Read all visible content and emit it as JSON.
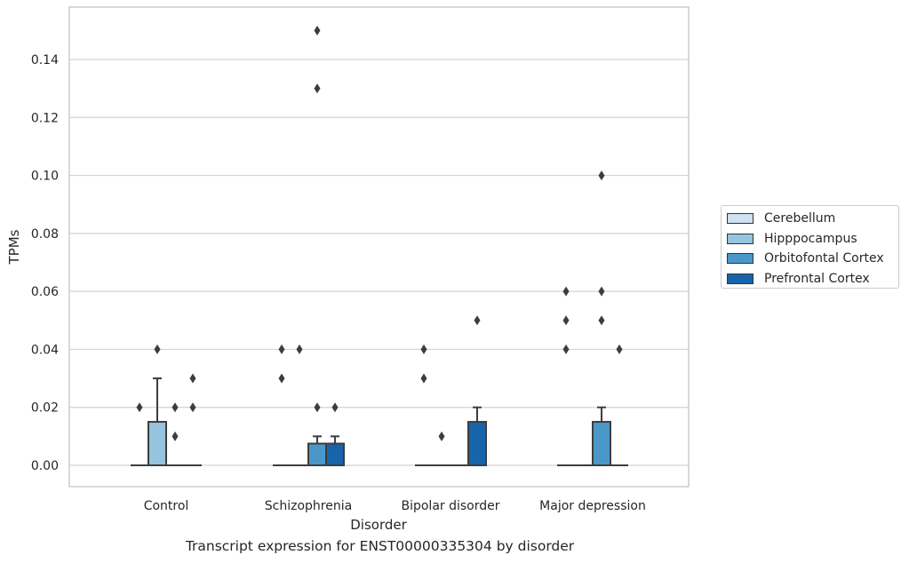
{
  "chart_data": {
    "type": "boxplot",
    "xlabel": "Disorder",
    "ylabel": "TPMs",
    "ylim": [
      -0.0075,
      0.157
    ],
    "yticks": [
      0.0,
      0.02,
      0.04,
      0.06,
      0.08,
      0.1,
      0.12,
      0.14
    ],
    "ytick_labels": [
      "0.00",
      "0.02",
      "0.04",
      "0.06",
      "0.08",
      "0.10",
      "0.12",
      "0.14"
    ],
    "grid": "horizontal",
    "legend_position": "right",
    "categories": [
      "Control",
      "Schizophrenia",
      "Bipolar disorder",
      "Major depression"
    ],
    "series": [
      {
        "name": "Cerebellum",
        "color": "#d0e1f2",
        "boxes": [
          {
            "q1": 0,
            "median": 0,
            "q3": 0,
            "whisker_low": 0,
            "whisker_high": 0,
            "outliers": [
              0.02
            ]
          },
          {
            "q1": 0,
            "median": 0,
            "q3": 0,
            "whisker_low": 0,
            "whisker_high": 0,
            "outliers": [
              0.03,
              0.04
            ]
          },
          {
            "q1": 0,
            "median": 0,
            "q3": 0,
            "whisker_low": 0,
            "whisker_high": 0,
            "outliers": [
              0.03,
              0.04
            ]
          },
          {
            "q1": 0,
            "median": 0,
            "q3": 0,
            "whisker_low": 0,
            "whisker_high": 0,
            "outliers": [
              0.04,
              0.05,
              0.06
            ]
          }
        ]
      },
      {
        "name": "Hipppocampus",
        "color": "#94c4df",
        "boxes": [
          {
            "q1": 0,
            "median": 0,
            "q3": 0.015,
            "whisker_low": 0,
            "whisker_high": 0.03,
            "outliers": [
              0.04
            ]
          },
          {
            "q1": 0,
            "median": 0,
            "q3": 0,
            "whisker_low": 0,
            "whisker_high": 0,
            "outliers": [
              0.04
            ]
          },
          {
            "q1": 0,
            "median": 0,
            "q3": 0,
            "whisker_low": 0,
            "whisker_high": 0,
            "outliers": [
              0.01
            ]
          },
          {
            "q1": 0,
            "median": 0,
            "q3": 0,
            "whisker_low": 0,
            "whisker_high": 0,
            "outliers": []
          }
        ]
      },
      {
        "name": "Orbitofontal Cortex",
        "color": "#4a98c9",
        "boxes": [
          {
            "q1": 0,
            "median": 0,
            "q3": 0,
            "whisker_low": 0,
            "whisker_high": 0,
            "outliers": [
              0.01,
              0.02
            ]
          },
          {
            "q1": 0,
            "median": 0,
            "q3": 0.0075,
            "whisker_low": 0,
            "whisker_high": 0.01,
            "outliers": [
              0.02,
              0.13,
              0.15
            ]
          },
          {
            "q1": 0,
            "median": 0,
            "q3": 0,
            "whisker_low": 0,
            "whisker_high": 0,
            "outliers": []
          },
          {
            "q1": 0,
            "median": 0,
            "q3": 0.015,
            "whisker_low": 0,
            "whisker_high": 0.02,
            "outliers": [
              0.05,
              0.06,
              0.1
            ]
          }
        ]
      },
      {
        "name": "Prefrontal Cortex",
        "color": "#1764ab",
        "boxes": [
          {
            "q1": 0,
            "median": 0,
            "q3": 0,
            "whisker_low": 0,
            "whisker_high": 0,
            "outliers": [
              0.02,
              0.03
            ]
          },
          {
            "q1": 0,
            "median": 0,
            "q3": 0.0075,
            "whisker_low": 0,
            "whisker_high": 0.01,
            "outliers": [
              0.02
            ]
          },
          {
            "q1": 0,
            "median": 0,
            "q3": 0.015,
            "whisker_low": 0,
            "whisker_high": 0.02,
            "outliers": [
              0.05
            ]
          },
          {
            "q1": 0,
            "median": 0,
            "q3": 0,
            "whisker_low": 0,
            "whisker_high": 0,
            "outliers": [
              0.04
            ]
          }
        ]
      }
    ]
  },
  "caption": "Transcript expression for ENST00000335304 by disorder"
}
